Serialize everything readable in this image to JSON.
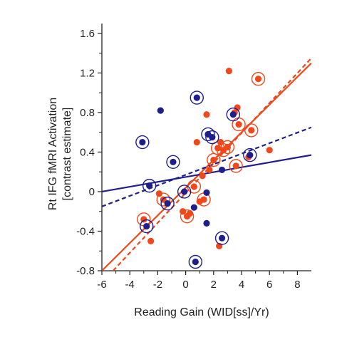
{
  "chart_data": {
    "type": "scatter",
    "xlabel": "Reading Gain  (WID[ss]/Yr)",
    "ylabel_line1": "Rt IFG fMRI Activation",
    "ylabel_line2": "[contrast estimate]",
    "xlim": [
      -6,
      9
    ],
    "ylim": [
      -0.8,
      1.7
    ],
    "xticks": [
      -6,
      -4,
      -2,
      0,
      2,
      4,
      6,
      8
    ],
    "yticks": [
      -0.8,
      -0.4,
      0,
      0.4,
      0.8,
      1.2,
      1.6
    ],
    "ytick_labels": [
      "-0.8",
      "-0.4",
      "0",
      "0.4",
      "0.8",
      "1.2",
      "1.6"
    ],
    "grid": false,
    "colors": {
      "orange": "#f0471b",
      "blue": "#1e1e8c"
    },
    "series": [
      {
        "color": "orange",
        "points": [
          {
            "x": -3.0,
            "y": -0.28,
            "ring": true
          },
          {
            "x": -2.5,
            "y": -0.5,
            "ring": false
          },
          {
            "x": -1.9,
            "y": -0.02,
            "ring": false
          },
          {
            "x": -1.6,
            "y": -0.08,
            "ring": true
          },
          {
            "x": -0.2,
            "y": -0.2,
            "ring": false
          },
          {
            "x": 0.1,
            "y": -0.25,
            "ring": true
          },
          {
            "x": 0.3,
            "y": -0.22,
            "ring": false
          },
          {
            "x": 0.6,
            "y": 0.05,
            "ring": true
          },
          {
            "x": 0.8,
            "y": 0.5,
            "ring": false
          },
          {
            "x": 1.0,
            "y": -0.1,
            "ring": false
          },
          {
            "x": 1.2,
            "y": 0.16,
            "ring": false
          },
          {
            "x": 1.3,
            "y": -0.08,
            "ring": true
          },
          {
            "x": 1.5,
            "y": 0.78,
            "ring": false
          },
          {
            "x": 1.7,
            "y": 0.22,
            "ring": false
          },
          {
            "x": 2.0,
            "y": 0.32,
            "ring": true
          },
          {
            "x": 2.3,
            "y": 0.44,
            "ring": true
          },
          {
            "x": 2.5,
            "y": 0.5,
            "ring": false
          },
          {
            "x": 2.7,
            "y": 0.42,
            "ring": true
          },
          {
            "x": 2.4,
            "y": -0.55,
            "ring": false
          },
          {
            "x": 3.0,
            "y": 0.45,
            "ring": true
          },
          {
            "x": 3.1,
            "y": 1.22,
            "ring": false
          },
          {
            "x": 3.5,
            "y": 0.8,
            "ring": false
          },
          {
            "x": 3.7,
            "y": 0.85,
            "ring": false
          },
          {
            "x": 3.6,
            "y": 0.26,
            "ring": true
          },
          {
            "x": 3.8,
            "y": 0.68,
            "ring": true
          },
          {
            "x": 4.5,
            "y": 0.35,
            "ring": false
          },
          {
            "x": 4.7,
            "y": 0.62,
            "ring": true
          },
          {
            "x": 5.2,
            "y": 1.14,
            "ring": true
          },
          {
            "x": 6.0,
            "y": 0.42,
            "ring": false
          }
        ]
      },
      {
        "color": "blue",
        "points": [
          {
            "x": -3.1,
            "y": 0.5,
            "ring": true
          },
          {
            "x": -2.6,
            "y": 0.06,
            "ring": true
          },
          {
            "x": -2.8,
            "y": -0.35,
            "ring": true
          },
          {
            "x": -1.8,
            "y": 0.82,
            "ring": false
          },
          {
            "x": -1.3,
            "y": -0.12,
            "ring": true
          },
          {
            "x": -0.9,
            "y": 0.3,
            "ring": true
          },
          {
            "x": -0.1,
            "y": 0.0,
            "ring": true
          },
          {
            "x": 0.6,
            "y": -0.16,
            "ring": false
          },
          {
            "x": 0.8,
            "y": 0.95,
            "ring": true
          },
          {
            "x": 0.7,
            "y": -0.71,
            "ring": true
          },
          {
            "x": 1.5,
            "y": -0.32,
            "ring": false
          },
          {
            "x": 1.5,
            "y": -0.01,
            "ring": false
          },
          {
            "x": 1.6,
            "y": 0.58,
            "ring": true
          },
          {
            "x": 1.9,
            "y": 0.55,
            "ring": true
          },
          {
            "x": 2.6,
            "y": -0.47,
            "ring": true
          },
          {
            "x": 2.6,
            "y": 0.22,
            "ring": false
          },
          {
            "x": 3.4,
            "y": 0.78,
            "ring": true
          },
          {
            "x": 4.6,
            "y": 0.37,
            "ring": true
          }
        ]
      }
    ],
    "fit_lines": [
      {
        "color": "orange",
        "style": "solid",
        "x": [
          -6,
          9
        ],
        "y": [
          -0.8,
          1.3
        ]
      },
      {
        "color": "orange",
        "style": "dashed",
        "x": [
          -5.2,
          9
        ],
        "y": [
          -0.8,
          1.35
        ]
      },
      {
        "color": "blue",
        "style": "solid",
        "x": [
          -6,
          9
        ],
        "y": [
          0.0,
          0.37
        ]
      },
      {
        "color": "blue",
        "style": "dashed",
        "x": [
          -6,
          9
        ],
        "y": [
          -0.15,
          0.65
        ]
      }
    ]
  }
}
